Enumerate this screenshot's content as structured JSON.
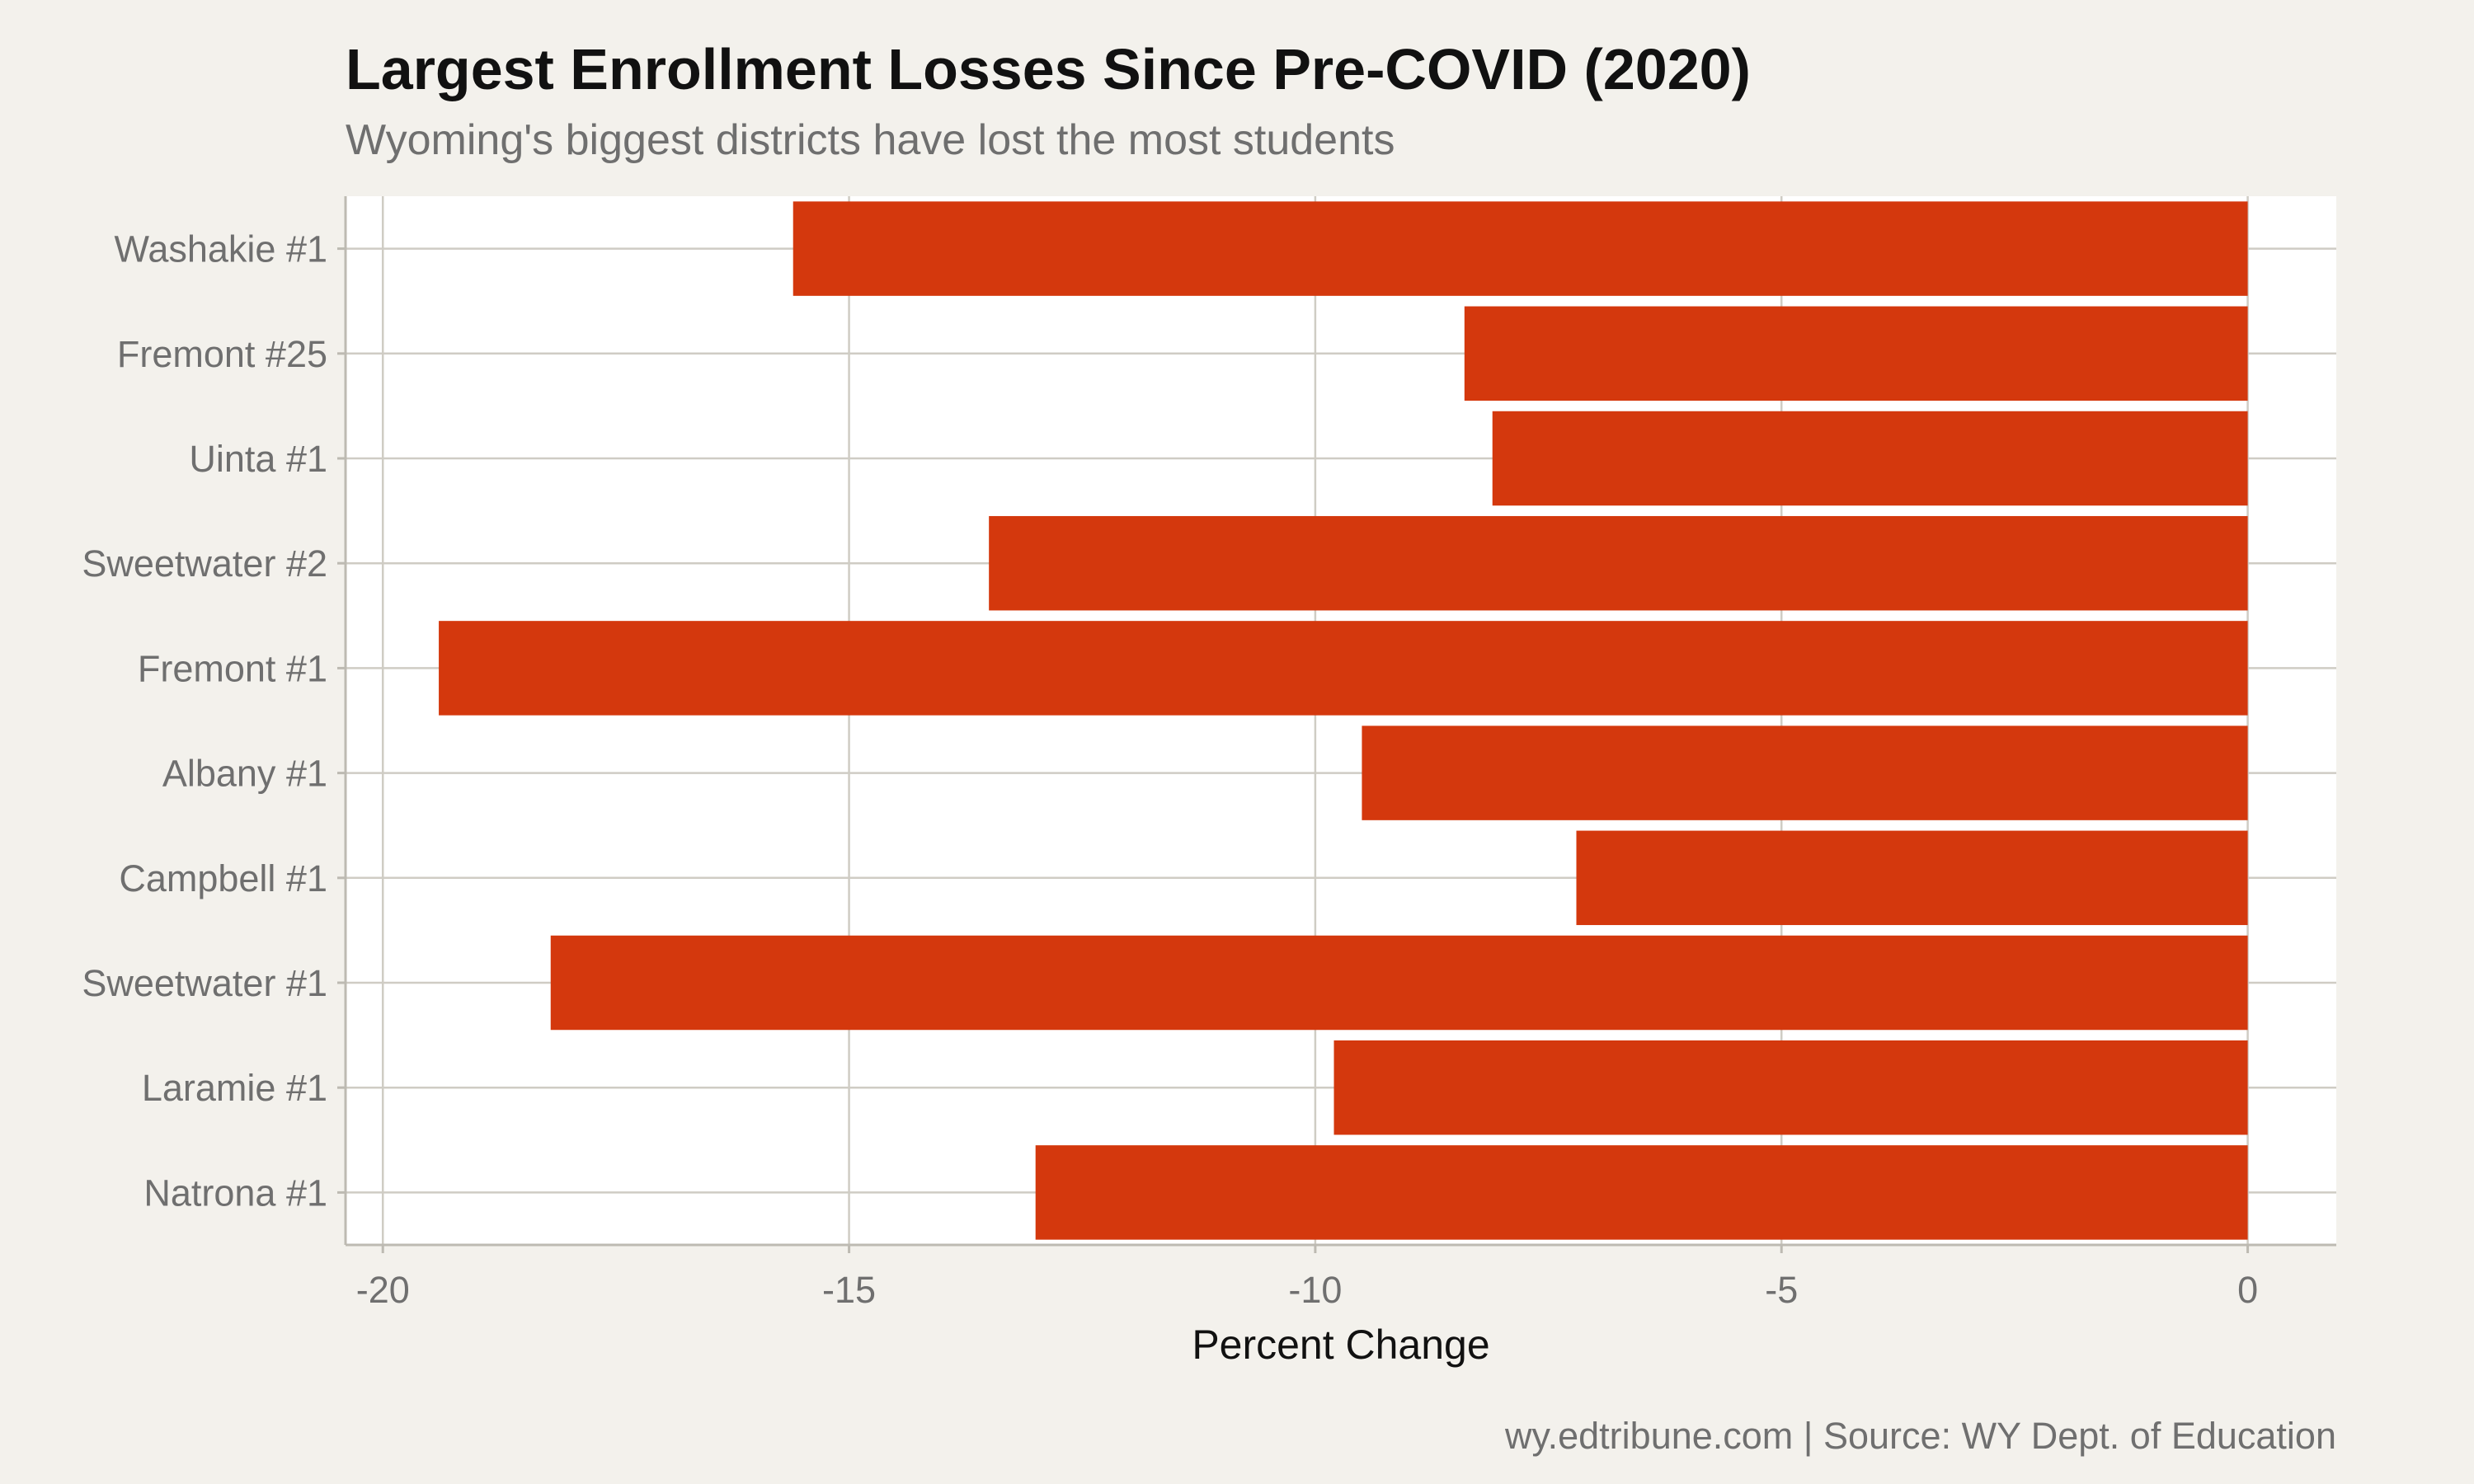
{
  "chart_data": {
    "type": "bar",
    "orientation": "horizontal",
    "title": "Largest Enrollment Losses Since Pre-COVID (2020)",
    "subtitle": "Wyoming's biggest districts have lost the most students",
    "xlabel": "Percent Change",
    "ylabel": "",
    "caption": "wy.edtribune.com | Source: WY Dept. of Education",
    "categories": [
      "Washakie #1",
      "Fremont #25",
      "Uinta #1",
      "Sweetwater #2",
      "Fremont #1",
      "Albany #1",
      "Campbell #1",
      "Sweetwater #1",
      "Laramie #1",
      "Natrona #1"
    ],
    "values": [
      -15.6,
      -8.4,
      -8.1,
      -13.5,
      -19.4,
      -9.5,
      -7.2,
      -18.2,
      -9.8,
      -13.0
    ],
    "xlim": [
      -20.4,
      0.95
    ],
    "xticks": [
      -20,
      -15,
      -10,
      -5,
      0
    ],
    "xtick_labels": [
      "-20",
      "-15",
      "-10",
      "-5",
      "0"
    ],
    "grid": true,
    "legend": "none",
    "colors": {
      "bar": "#d4380d",
      "panel_background": "#ffffff",
      "page_background": "#f3f1ec",
      "grid": "#cfccc4"
    }
  }
}
